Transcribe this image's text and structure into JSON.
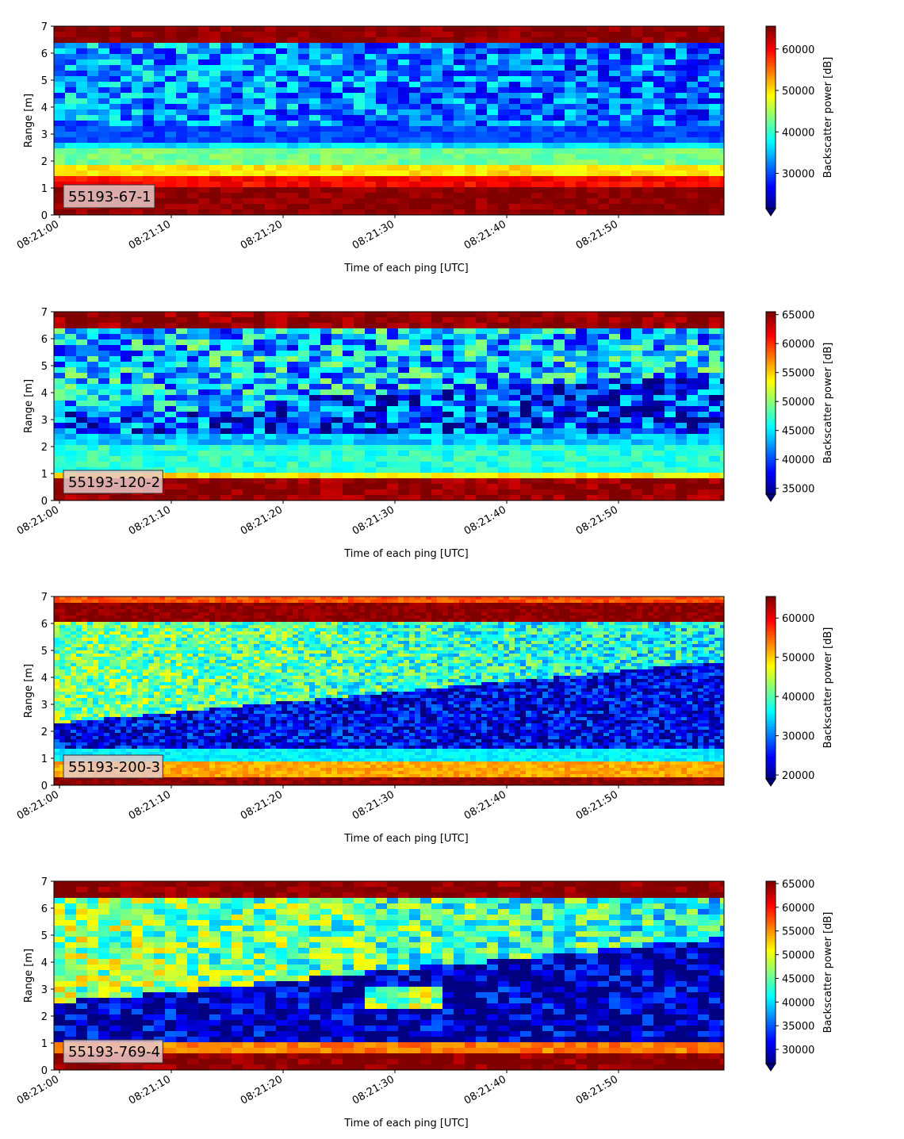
{
  "colormap": "jet",
  "colors": {
    "jet_stops": [
      "#00007f",
      "#0000ff",
      "#007fff",
      "#00ffff",
      "#7fff7f",
      "#ffff00",
      "#ff7f00",
      "#ff0000",
      "#7f0000"
    ],
    "label_box_fill": "#e8c8c8"
  },
  "chart_data": [
    {
      "type": "heatmap",
      "label": "55193-67-1",
      "xlabel": "Time of each ping [UTC]",
      "ylabel": "Range [m]",
      "ylim": [
        0,
        7
      ],
      "xlim_seconds": [
        0,
        60
      ],
      "x_ticks": [
        "08:21:00",
        "08:21:10",
        "08:21:20",
        "08:21:30",
        "08:21:40",
        "08:21:50"
      ],
      "y_ticks": [
        0,
        1,
        2,
        3,
        4,
        5,
        6,
        7
      ],
      "colorbar": {
        "label": "Backscatter power [dB]",
        "ticks": [
          30000,
          40000,
          50000,
          60000
        ],
        "range": [
          21500,
          65500
        ],
        "extend": "min"
      },
      "approx_layers": [
        {
          "from_m": 0.0,
          "to_m": 0.25,
          "level": 65000
        },
        {
          "from_m": 0.25,
          "to_m": 1.1,
          "level": 65000
        },
        {
          "from_m": 1.1,
          "to_m": 1.5,
          "level": 60000
        },
        {
          "from_m": 1.5,
          "to_m": 1.9,
          "level": 50000
        },
        {
          "from_m": 1.9,
          "to_m": 2.4,
          "level": 43000
        },
        {
          "from_m": 2.4,
          "to_m": 2.75,
          "level": 37000
        },
        {
          "from_m": 2.75,
          "to_m": 3.3,
          "level": 30000
        },
        {
          "from_m": 3.3,
          "to_m": 6.3,
          "level": 34000
        },
        {
          "from_m": 6.3,
          "to_m": 6.4,
          "level": 52000
        },
        {
          "from_m": 6.4,
          "to_m": 7.0,
          "level": 65000
        }
      ]
    },
    {
      "type": "heatmap",
      "label": "55193-120-2",
      "xlabel": "Time of each ping [UTC]",
      "ylabel": "Range [m]",
      "ylim": [
        0,
        7
      ],
      "xlim_seconds": [
        0,
        60
      ],
      "x_ticks": [
        "08:21:00",
        "08:21:10",
        "08:21:20",
        "08:21:30",
        "08:21:40",
        "08:21:50"
      ],
      "y_ticks": [
        0,
        1,
        2,
        3,
        4,
        5,
        6,
        7
      ],
      "colorbar": {
        "label": "Backscatter power [dB]",
        "ticks": [
          35000,
          40000,
          45000,
          50000,
          55000,
          60000,
          65000
        ],
        "range": [
          34000,
          65500
        ],
        "extend": "min"
      },
      "approx_layers": [
        {
          "from_m": 0.0,
          "to_m": 0.25,
          "level": 65000
        },
        {
          "from_m": 0.25,
          "to_m": 0.85,
          "level": 65000
        },
        {
          "from_m": 0.85,
          "to_m": 1.1,
          "level": 54000
        },
        {
          "from_m": 1.1,
          "to_m": 2.0,
          "level": 47000
        },
        {
          "from_m": 2.0,
          "to_m": 2.5,
          "level": 44000
        },
        {
          "from_m": 2.5,
          "to_m": 3.3,
          "level": 40000
        },
        {
          "from_m": 3.3,
          "to_m": 6.3,
          "level": 44000
        },
        {
          "from_m": 6.3,
          "to_m": 7.0,
          "level": 65000
        }
      ]
    },
    {
      "type": "heatmap",
      "label": "55193-200-3",
      "xlabel": "Time of each ping [UTC]",
      "ylabel": "Range [m]",
      "ylim": [
        0,
        7
      ],
      "xlim_seconds": [
        0,
        60
      ],
      "x_ticks": [
        "08:21:00",
        "08:21:10",
        "08:21:20",
        "08:21:30",
        "08:21:40",
        "08:21:50"
      ],
      "y_ticks": [
        0,
        1,
        2,
        3,
        4,
        5,
        6,
        7
      ],
      "colorbar": {
        "label": "Backscatter power [dB]",
        "ticks": [
          20000,
          30000,
          40000,
          50000,
          60000
        ],
        "range": [
          19000,
          65500
        ],
        "extend": "min"
      },
      "approx_layers": [
        {
          "from_m": 0.0,
          "to_m": 0.35,
          "level": 65000
        },
        {
          "from_m": 0.35,
          "to_m": 0.9,
          "level": 52000
        },
        {
          "from_m": 0.9,
          "to_m": 1.3,
          "level": 36000
        },
        {
          "from_m": 1.3,
          "to_m": 3.0,
          "level": 24000
        },
        {
          "from_m": 3.0,
          "to_m": 6.1,
          "level": 40000
        },
        {
          "from_m": 6.1,
          "to_m": 6.8,
          "level": 65000
        },
        {
          "from_m": 6.8,
          "to_m": 7.0,
          "level": 56000
        }
      ]
    },
    {
      "type": "heatmap",
      "label": "55193-769-4",
      "xlabel": "Time of each ping [UTC]",
      "ylabel": "Range [m]",
      "ylim": [
        0,
        7
      ],
      "xlim_seconds": [
        0,
        60
      ],
      "x_ticks": [
        "08:21:00",
        "08:21:10",
        "08:21:20",
        "08:21:30",
        "08:21:40",
        "08:21:50"
      ],
      "y_ticks": [
        0,
        1,
        2,
        3,
        4,
        5,
        6,
        7
      ],
      "colorbar": {
        "label": "Backscatter power [dB]",
        "ticks": [
          30000,
          35000,
          40000,
          45000,
          50000,
          55000,
          60000,
          65000
        ],
        "range": [
          27000,
          65500
        ],
        "extend": "min"
      },
      "approx_layers": [
        {
          "from_m": 0.0,
          "to_m": 0.25,
          "level": 65000
        },
        {
          "from_m": 0.25,
          "to_m": 0.7,
          "level": 65000
        },
        {
          "from_m": 0.7,
          "to_m": 1.0,
          "level": 56000
        },
        {
          "from_m": 1.0,
          "to_m": 2.5,
          "level": 29000
        },
        {
          "from_m": 2.5,
          "to_m": 6.3,
          "level": 46000
        },
        {
          "from_m": 6.3,
          "to_m": 6.9,
          "level": 65000
        },
        {
          "from_m": 6.9,
          "to_m": 7.0,
          "level": 58000
        }
      ]
    }
  ]
}
